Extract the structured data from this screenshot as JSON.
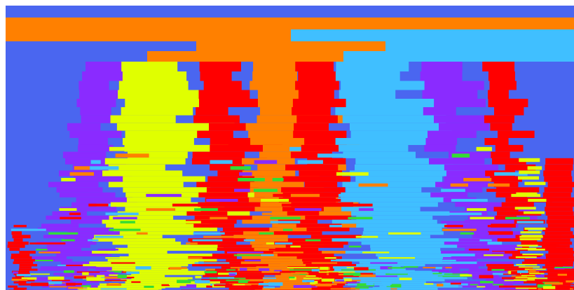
{
  "canvas": {
    "background": "#ffffff",
    "field_color": "#4a66f0"
  },
  "palette": {
    "blue": "#4a66f0",
    "orange": "#ff8000",
    "sky": "#40bfff",
    "yellow": "#e0ff00",
    "red": "#ff0000",
    "violet": "#8a2bff",
    "green": "#33dd33"
  },
  "figure": {
    "kind": "tiled color bands (stacked horizontal stripes)",
    "band_order_top_to_bottom": [
      "orange",
      "sky",
      "yellow",
      "red",
      "violet",
      "green"
    ]
  }
}
